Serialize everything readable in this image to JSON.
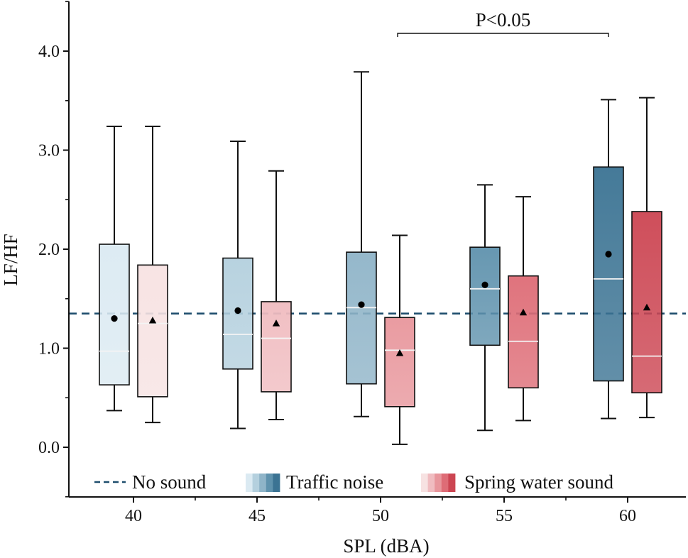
{
  "chart_data": {
    "type": "boxplot",
    "xlabel": "SPL (dBA)",
    "ylabel": "LF/HF",
    "ylim": [
      -0.5,
      4.5
    ],
    "yticks": [
      0.0,
      1.0,
      2.0,
      3.0,
      4.0
    ],
    "ytick_labels": [
      "0.0",
      "1.0",
      "2.0",
      "3.0",
      "4.0"
    ],
    "categories": [
      "40",
      "45",
      "50",
      "55",
      "60"
    ],
    "reference_line": {
      "name": "No sound",
      "value": 1.35,
      "color": "#1f4e6e"
    },
    "series": [
      {
        "name": "Traffic noise",
        "mean_marker": "circle",
        "colors": [
          "#dbeaf2",
          "#b4d0de",
          "#8fb4c8",
          "#5f92ad",
          "#3b7393"
        ],
        "boxes": [
          {
            "category": "40",
            "whisker_low": 0.37,
            "q1": 0.63,
            "median": 0.97,
            "q3": 2.05,
            "whisker_high": 3.24,
            "mean": 1.3
          },
          {
            "category": "45",
            "whisker_low": 0.19,
            "q1": 0.79,
            "median": 1.14,
            "q3": 1.91,
            "whisker_high": 3.09,
            "mean": 1.38
          },
          {
            "category": "50",
            "whisker_low": 0.31,
            "q1": 0.64,
            "median": 1.41,
            "q3": 1.97,
            "whisker_high": 3.79,
            "mean": 1.44
          },
          {
            "category": "55",
            "whisker_low": 0.17,
            "q1": 1.03,
            "median": 1.6,
            "q3": 2.02,
            "whisker_high": 2.65,
            "mean": 1.64
          },
          {
            "category": "60",
            "whisker_low": 0.29,
            "q1": 0.67,
            "median": 1.7,
            "q3": 2.83,
            "whisker_high": 3.51,
            "mean": 1.95
          }
        ]
      },
      {
        "name": "Spring water sound",
        "mean_marker": "triangle",
        "colors": [
          "#f7e2e2",
          "#f0bcc0",
          "#e8969c",
          "#de6c76",
          "#cc4552"
        ],
        "boxes": [
          {
            "category": "40",
            "whisker_low": 0.25,
            "q1": 0.51,
            "median": 1.25,
            "q3": 1.84,
            "whisker_high": 3.24,
            "mean": 1.28
          },
          {
            "category": "45",
            "whisker_low": 0.28,
            "q1": 0.56,
            "median": 1.1,
            "q3": 1.47,
            "whisker_high": 2.79,
            "mean": 1.25
          },
          {
            "category": "50",
            "whisker_low": 0.03,
            "q1": 0.41,
            "median": 0.98,
            "q3": 1.31,
            "whisker_high": 2.14,
            "mean": 0.95
          },
          {
            "category": "55",
            "whisker_low": 0.27,
            "q1": 0.6,
            "median": 1.07,
            "q3": 1.73,
            "whisker_high": 2.53,
            "mean": 1.36
          },
          {
            "category": "60",
            "whisker_low": 0.3,
            "q1": 0.55,
            "median": 0.92,
            "q3": 2.38,
            "whisker_high": 3.53,
            "mean": 1.41
          }
        ]
      }
    ],
    "annotations": [
      {
        "text": "P<0.05",
        "from": "Spring water sound 50",
        "to": "Traffic noise 60"
      }
    ],
    "legend": {
      "position": "bottom",
      "entries": [
        "No sound",
        "Traffic noise",
        "Spring water sound"
      ]
    }
  }
}
